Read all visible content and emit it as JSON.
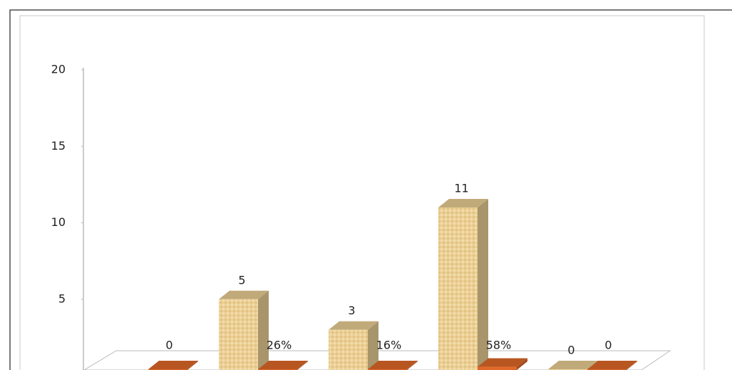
{
  "chart_data": {
    "type": "bar3d",
    "series": [
      {
        "color": "#ebcf95",
        "values": [
          null,
          5,
          3,
          11,
          0
        ],
        "value_labels": [
          null,
          "5",
          "3",
          "11",
          "0"
        ]
      },
      {
        "color": "#e0692a",
        "values": [
          0,
          0.26,
          0.16,
          0.58,
          0
        ],
        "value_labels": [
          "0",
          "26%",
          "16%",
          "58%",
          "0"
        ]
      }
    ],
    "ylim": [
      0,
      20
    ],
    "yticks": [
      5,
      10,
      15,
      20
    ]
  }
}
